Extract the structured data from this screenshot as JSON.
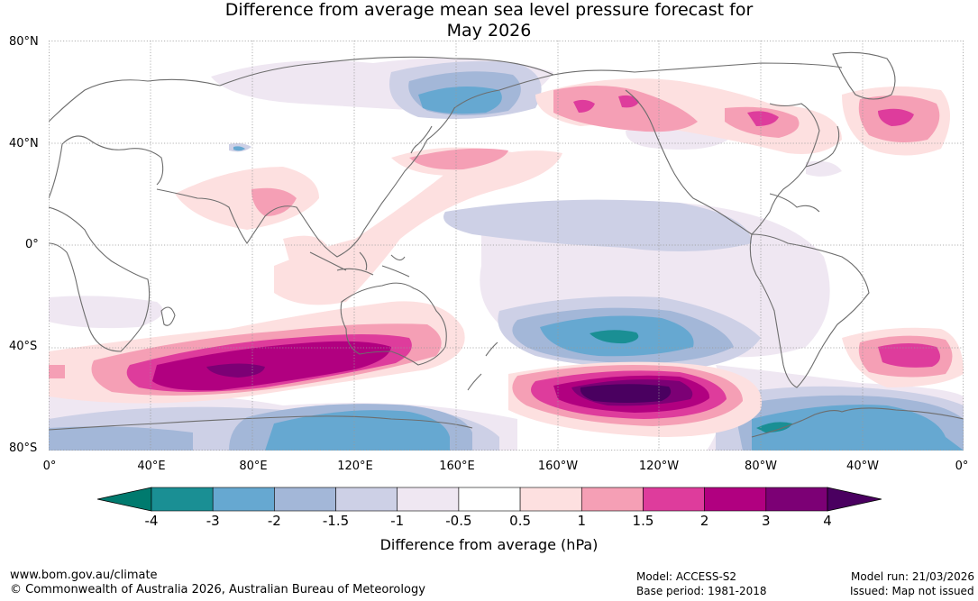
{
  "title": {
    "line1": "Difference from average mean sea level pressure forecast for",
    "line2": "May 2026"
  },
  "axes": {
    "lat_labels": [
      "80°N",
      "40°N",
      "0°",
      "40°S",
      "80°S"
    ],
    "lon_labels": [
      "0°",
      "40°E",
      "80°E",
      "120°E",
      "160°E",
      "160°W",
      "120°W",
      "80°W",
      "40°W",
      "0°"
    ]
  },
  "colorbar": {
    "title": "Difference from average (hPa)",
    "tick_labels": [
      "-4",
      "-3",
      "-2",
      "-1.5",
      "-1",
      "-0.5",
      "0.5",
      "1",
      "1.5",
      "2",
      "3",
      "4"
    ],
    "colors": [
      "#1a8f94",
      "#66a8d1",
      "#a3b7d8",
      "#cdd0e6",
      "#efe7f2",
      "#ffffff",
      "#fde0e0",
      "#f59fb5",
      "#de3c9c",
      "#b10080",
      "#7c0075",
      "#4a0060"
    ],
    "under_color": "#007a6e",
    "over_color": "#4a0060"
  },
  "footer": {
    "website": "www.bom.gov.au/climate",
    "copyright": "© Commonwealth of Australia 2026, Australian Bureau of Meteorology",
    "model": "Model: ACCESS-S2",
    "base_period": "Base period: 1981-2018",
    "model_run": "Model run: 21/03/2026",
    "issued": "Issued: Map not issued"
  }
}
